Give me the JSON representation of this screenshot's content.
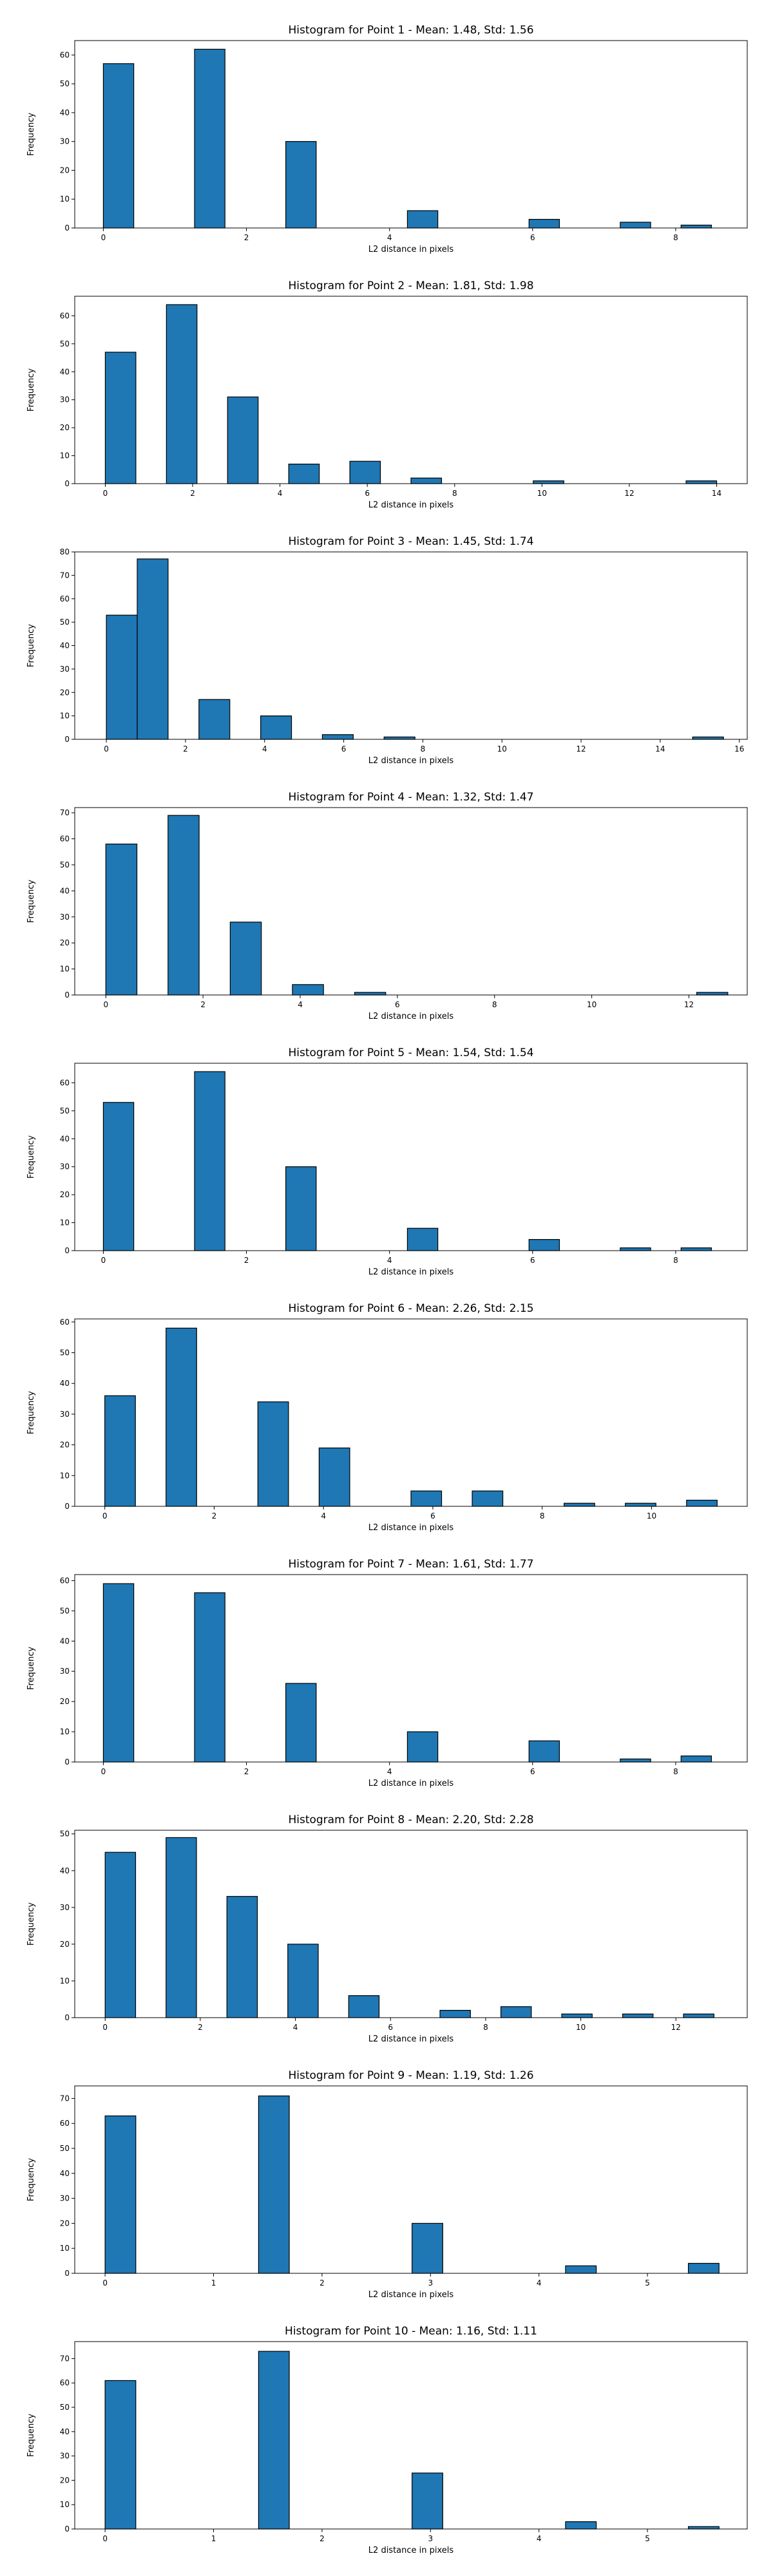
{
  "chart_data": [
    {
      "type": "bar",
      "title": "Histogram for Point 1 - Mean: 1.48, Std: 1.56",
      "xlabel": "L2 distance in pixels",
      "ylabel": "Frequency",
      "xlim": [
        -0.4,
        9.0
      ],
      "ylim": [
        0,
        65
      ],
      "xticks": [
        0,
        2,
        4,
        6,
        8
      ],
      "yticks": [
        0,
        10,
        20,
        30,
        40,
        50,
        60
      ],
      "bin_edges": [
        0.0,
        0.425,
        0.85,
        1.275,
        1.7,
        2.125,
        2.55,
        2.975,
        3.4,
        3.825,
        4.25,
        4.675,
        5.1,
        5.525,
        5.95,
        6.375,
        6.8,
        7.225,
        7.65,
        8.075,
        8.5
      ],
      "counts": [
        57,
        0,
        0,
        62,
        0,
        0,
        30,
        0,
        0,
        0,
        6,
        0,
        0,
        0,
        3,
        0,
        0,
        2,
        0,
        1
      ]
    },
    {
      "type": "bar",
      "title": "Histogram for Point 2 - Mean: 1.81, Std: 1.98",
      "xlabel": "L2 distance in pixels",
      "ylabel": "Frequency",
      "xlim": [
        -0.7,
        14.7
      ],
      "ylim": [
        0,
        67
      ],
      "xticks": [
        0,
        2,
        4,
        6,
        8,
        10,
        12,
        14
      ],
      "yticks": [
        0,
        10,
        20,
        30,
        40,
        50,
        60
      ],
      "bin_edges": [
        0.0,
        0.7,
        1.4,
        2.1,
        2.8,
        3.5,
        4.2,
        4.9,
        5.6,
        6.3,
        7.0,
        7.7,
        8.4,
        9.1,
        9.8,
        10.5,
        11.2,
        11.9,
        12.6,
        13.3,
        14.0
      ],
      "counts": [
        47,
        0,
        64,
        0,
        31,
        0,
        7,
        0,
        8,
        0,
        2,
        0,
        0,
        0,
        1,
        0,
        0,
        0,
        0,
        1
      ]
    },
    {
      "type": "bar",
      "title": "Histogram for Point 3 - Mean: 1.45, Std: 1.74",
      "xlabel": "L2 distance in pixels",
      "ylabel": "Frequency",
      "xlim": [
        -0.8,
        16.2
      ],
      "ylim": [
        0,
        80
      ],
      "xticks": [
        0,
        2,
        4,
        6,
        8,
        10,
        12,
        14,
        16
      ],
      "yticks": [
        0,
        10,
        20,
        30,
        40,
        50,
        60,
        70,
        80
      ],
      "bin_edges": [
        0.0,
        0.78,
        1.56,
        2.34,
        3.12,
        3.9,
        4.68,
        5.46,
        6.24,
        7.02,
        7.8,
        8.58,
        9.36,
        10.14,
        10.92,
        11.7,
        12.48,
        13.26,
        14.04,
        14.82,
        15.6
      ],
      "counts": [
        53,
        77,
        0,
        17,
        0,
        10,
        0,
        2,
        0,
        1,
        0,
        0,
        0,
        0,
        0,
        0,
        0,
        0,
        0,
        1
      ]
    },
    {
      "type": "bar",
      "title": "Histogram for Point 4 - Mean: 1.32, Std: 1.47",
      "xlabel": "L2 distance in pixels",
      "ylabel": "Frequency",
      "xlim": [
        -0.64,
        13.2
      ],
      "ylim": [
        0,
        72
      ],
      "xticks": [
        0,
        2,
        4,
        6,
        8,
        10,
        12
      ],
      "yticks": [
        0,
        10,
        20,
        30,
        40,
        50,
        60,
        70
      ],
      "bin_edges": [
        0.0,
        0.64,
        1.28,
        1.92,
        2.56,
        3.2,
        3.84,
        4.48,
        5.12,
        5.76,
        6.4,
        7.04,
        7.68,
        8.32,
        8.96,
        9.6,
        10.24,
        10.88,
        11.52,
        12.16,
        12.8
      ],
      "counts": [
        58,
        0,
        69,
        0,
        28,
        0,
        4,
        0,
        1,
        0,
        0,
        0,
        0,
        0,
        0,
        0,
        0,
        0,
        0,
        1
      ]
    },
    {
      "type": "bar",
      "title": "Histogram for Point 5 - Mean: 1.54, Std: 1.54",
      "xlabel": "L2 distance in pixels",
      "ylabel": "Frequency",
      "xlim": [
        -0.4,
        9.0
      ],
      "ylim": [
        0,
        67
      ],
      "xticks": [
        0,
        2,
        4,
        6,
        8
      ],
      "yticks": [
        0,
        10,
        20,
        30,
        40,
        50,
        60
      ],
      "bin_edges": [
        0.0,
        0.425,
        0.85,
        1.275,
        1.7,
        2.125,
        2.55,
        2.975,
        3.4,
        3.825,
        4.25,
        4.675,
        5.1,
        5.525,
        5.95,
        6.375,
        6.8,
        7.225,
        7.65,
        8.075,
        8.5
      ],
      "counts": [
        53,
        0,
        0,
        64,
        0,
        0,
        30,
        0,
        0,
        0,
        8,
        0,
        0,
        0,
        4,
        0,
        0,
        1,
        0,
        1
      ]
    },
    {
      "type": "bar",
      "title": "Histogram for Point 6 - Mean: 2.26, Std: 2.15",
      "xlabel": "L2 distance in pixels",
      "ylabel": "Frequency",
      "xlim": [
        -0.55,
        11.75
      ],
      "ylim": [
        0,
        61
      ],
      "xticks": [
        0,
        2,
        4,
        6,
        8,
        10
      ],
      "yticks": [
        0,
        10,
        20,
        30,
        40,
        50,
        60
      ],
      "bin_edges": [
        0.0,
        0.56,
        1.12,
        1.68,
        2.24,
        2.8,
        3.36,
        3.92,
        4.48,
        5.04,
        5.6,
        6.16,
        6.72,
        7.28,
        7.84,
        8.4,
        8.96,
        9.52,
        10.08,
        10.64,
        11.2
      ],
      "counts": [
        36,
        0,
        58,
        0,
        0,
        34,
        0,
        19,
        0,
        0,
        5,
        0,
        5,
        0,
        0,
        1,
        0,
        1,
        0,
        2
      ]
    },
    {
      "type": "bar",
      "title": "Histogram for Point 7 - Mean: 1.61, Std: 1.77",
      "xlabel": "L2 distance in pixels",
      "ylabel": "Frequency",
      "xlim": [
        -0.4,
        9.0
      ],
      "ylim": [
        0,
        62
      ],
      "xticks": [
        0,
        2,
        4,
        6,
        8
      ],
      "yticks": [
        0,
        10,
        20,
        30,
        40,
        50,
        60
      ],
      "bin_edges": [
        0.0,
        0.425,
        0.85,
        1.275,
        1.7,
        2.125,
        2.55,
        2.975,
        3.4,
        3.825,
        4.25,
        4.675,
        5.1,
        5.525,
        5.95,
        6.375,
        6.8,
        7.225,
        7.65,
        8.075,
        8.5
      ],
      "counts": [
        59,
        0,
        0,
        56,
        0,
        0,
        26,
        0,
        0,
        0,
        10,
        0,
        0,
        0,
        7,
        0,
        0,
        1,
        0,
        2
      ]
    },
    {
      "type": "bar",
      "title": "Histogram for Point 8 - Mean: 2.20, Std: 2.28",
      "xlabel": "L2 distance in pixels",
      "ylabel": "Frequency",
      "xlim": [
        -0.64,
        13.5
      ],
      "ylim": [
        0,
        51
      ],
      "xticks": [
        0,
        2,
        4,
        6,
        8,
        10,
        12
      ],
      "yticks": [
        0,
        10,
        20,
        30,
        40,
        50
      ],
      "bin_edges": [
        0.0,
        0.64,
        1.28,
        1.92,
        2.56,
        3.2,
        3.84,
        4.48,
        5.12,
        5.76,
        6.4,
        7.04,
        7.68,
        8.32,
        8.96,
        9.6,
        10.24,
        10.88,
        11.52,
        12.16,
        12.8
      ],
      "counts": [
        45,
        0,
        49,
        0,
        33,
        0,
        20,
        0,
        6,
        0,
        0,
        2,
        0,
        3,
        0,
        1,
        0,
        1,
        0,
        1
      ]
    },
    {
      "type": "bar",
      "title": "Histogram for Point 9 - Mean: 1.19, Std: 1.26",
      "xlabel": "L2 distance in pixels",
      "ylabel": "Frequency",
      "xlim": [
        -0.28,
        5.92
      ],
      "ylim": [
        0,
        75
      ],
      "xticks": [
        0,
        1,
        2,
        3,
        4,
        5
      ],
      "yticks": [
        0,
        10,
        20,
        30,
        40,
        50,
        60,
        70
      ],
      "bin_edges": [
        0.0,
        0.283,
        0.566,
        0.849,
        1.132,
        1.415,
        1.698,
        1.981,
        2.264,
        2.547,
        2.83,
        3.113,
        3.396,
        3.679,
        3.962,
        4.245,
        4.528,
        4.811,
        5.094,
        5.377,
        5.66
      ],
      "counts": [
        63,
        0,
        0,
        0,
        0,
        71,
        0,
        0,
        0,
        0,
        20,
        0,
        0,
        0,
        0,
        3,
        0,
        0,
        0,
        4
      ]
    },
    {
      "type": "bar",
      "title": "Histogram for Point 10 - Mean: 1.16, Std: 1.11",
      "xlabel": "L2 distance in pixels",
      "ylabel": "Frequency",
      "xlim": [
        -0.28,
        5.92
      ],
      "ylim": [
        0,
        77
      ],
      "xticks": [
        0,
        1,
        2,
        3,
        4,
        5
      ],
      "yticks": [
        0,
        10,
        20,
        30,
        40,
        50,
        60,
        70
      ],
      "bin_edges": [
        0.0,
        0.283,
        0.566,
        0.849,
        1.132,
        1.415,
        1.698,
        1.981,
        2.264,
        2.547,
        2.83,
        3.113,
        3.396,
        3.679,
        3.962,
        4.245,
        4.528,
        4.811,
        5.094,
        5.377,
        5.66
      ],
      "counts": [
        61,
        0,
        0,
        0,
        0,
        73,
        0,
        0,
        0,
        0,
        23,
        0,
        0,
        0,
        0,
        3,
        0,
        0,
        0,
        1
      ]
    }
  ],
  "colors": {
    "bar_fill": "#1f77b4",
    "bar_edge": "#000000"
  }
}
